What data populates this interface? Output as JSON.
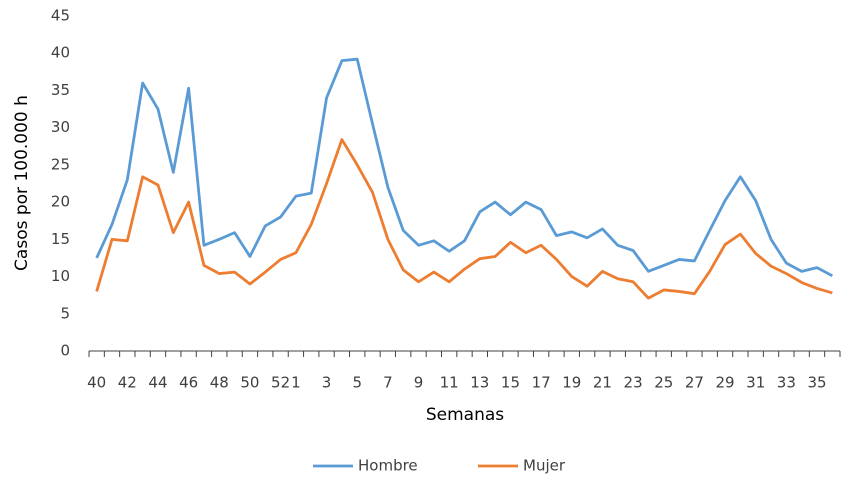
{
  "chart_data": {
    "type": "line",
    "y_label": "Casos por 100.000 h",
    "x_label": "Semanas",
    "categories": [
      "40",
      null,
      "42",
      null,
      "44",
      null,
      "46",
      null,
      "48",
      null,
      "50",
      null,
      "52",
      "1",
      null,
      "3",
      null,
      "5",
      null,
      "7",
      null,
      "9",
      null,
      "11",
      null,
      "13",
      null,
      "15",
      null,
      "17",
      null,
      "19",
      null,
      "21",
      null,
      "23",
      null,
      "25",
      null,
      "27",
      null,
      "29",
      null,
      "31",
      null,
      "33",
      null,
      "35",
      null
    ],
    "series": [
      {
        "name": "Hombre",
        "color": "#5b9bd5",
        "values": [
          12.5,
          17,
          23,
          36,
          32.5,
          24,
          35.3,
          14.2,
          15,
          15.9,
          12.7,
          16.8,
          18,
          20.8,
          21.2,
          34,
          39,
          39.2,
          30.5,
          22,
          16.2,
          14.2,
          14.8,
          13.4,
          14.8,
          18.7,
          20,
          18.3,
          20,
          19,
          15.5,
          16,
          15.2,
          16.4,
          14.2,
          13.5,
          10.7,
          11.5,
          12.3,
          12.1,
          16.2,
          20.2,
          23.4,
          20.2,
          15,
          11.8,
          10.7,
          11.2,
          10.1
        ]
      },
      {
        "name": "Mujer",
        "color": "#ed7d31",
        "values": [
          8,
          15,
          14.8,
          23.4,
          22.3,
          15.9,
          20,
          11.5,
          10.4,
          10.6,
          9,
          10.6,
          12.3,
          13.2,
          17,
          22.5,
          28.4,
          25,
          21.3,
          15,
          10.9,
          9.3,
          10.6,
          9.3,
          11,
          12.4,
          12.7,
          14.6,
          13.2,
          14.2,
          12.3,
          10,
          8.7,
          10.7,
          9.7,
          9.3,
          7.1,
          8.2,
          8,
          7.7,
          10.7,
          14.3,
          15.7,
          13.1,
          11.4,
          10.4,
          9.2,
          8.4,
          7.8
        ]
      }
    ],
    "ylim": [
      0,
      45
    ],
    "yticks": [
      0,
      5,
      10,
      15,
      20,
      25,
      30,
      35,
      40,
      45
    ],
    "grid": false,
    "legend": "bottom"
  }
}
